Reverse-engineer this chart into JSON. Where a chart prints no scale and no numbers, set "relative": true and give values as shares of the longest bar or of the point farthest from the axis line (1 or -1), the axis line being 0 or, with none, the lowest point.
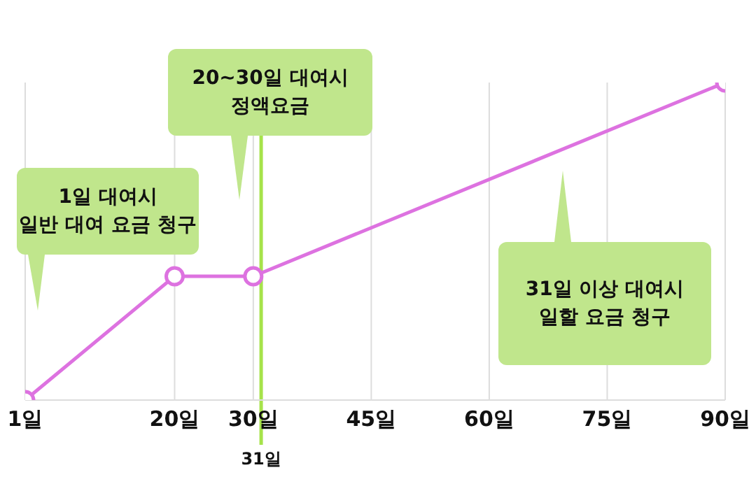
{
  "chart_data": {
    "type": "line",
    "relative": true,
    "x": [
      1,
      20,
      30,
      90
    ],
    "series": [
      {
        "color": "#dd72e0",
        "values": [
          0,
          0.39,
          0.39,
          1
        ]
      }
    ],
    "xlim": [
      1,
      90
    ],
    "xticks": [
      {
        "value": 1,
        "label": "1일"
      },
      {
        "value": 20,
        "label": "20일"
      },
      {
        "value": 30,
        "label": "30일"
      },
      {
        "value": 45,
        "label": "45일"
      },
      {
        "value": 60,
        "label": "60일"
      },
      {
        "value": 75,
        "label": "75일"
      },
      {
        "value": 90,
        "label": "90일"
      }
    ],
    "ref_lines": [
      {
        "axis": "x",
        "value": 31,
        "label": "31일",
        "color": "#a6e34a"
      }
    ],
    "annotations": [
      "1일 대여시\n일반 대여 요금 청구",
      "20~30일 대여시\n정액요금",
      "31일 이상 대여시\n일할 요금 청구"
    ],
    "grid": "x",
    "marker": "circle",
    "line_style": "solid",
    "legend": false
  }
}
